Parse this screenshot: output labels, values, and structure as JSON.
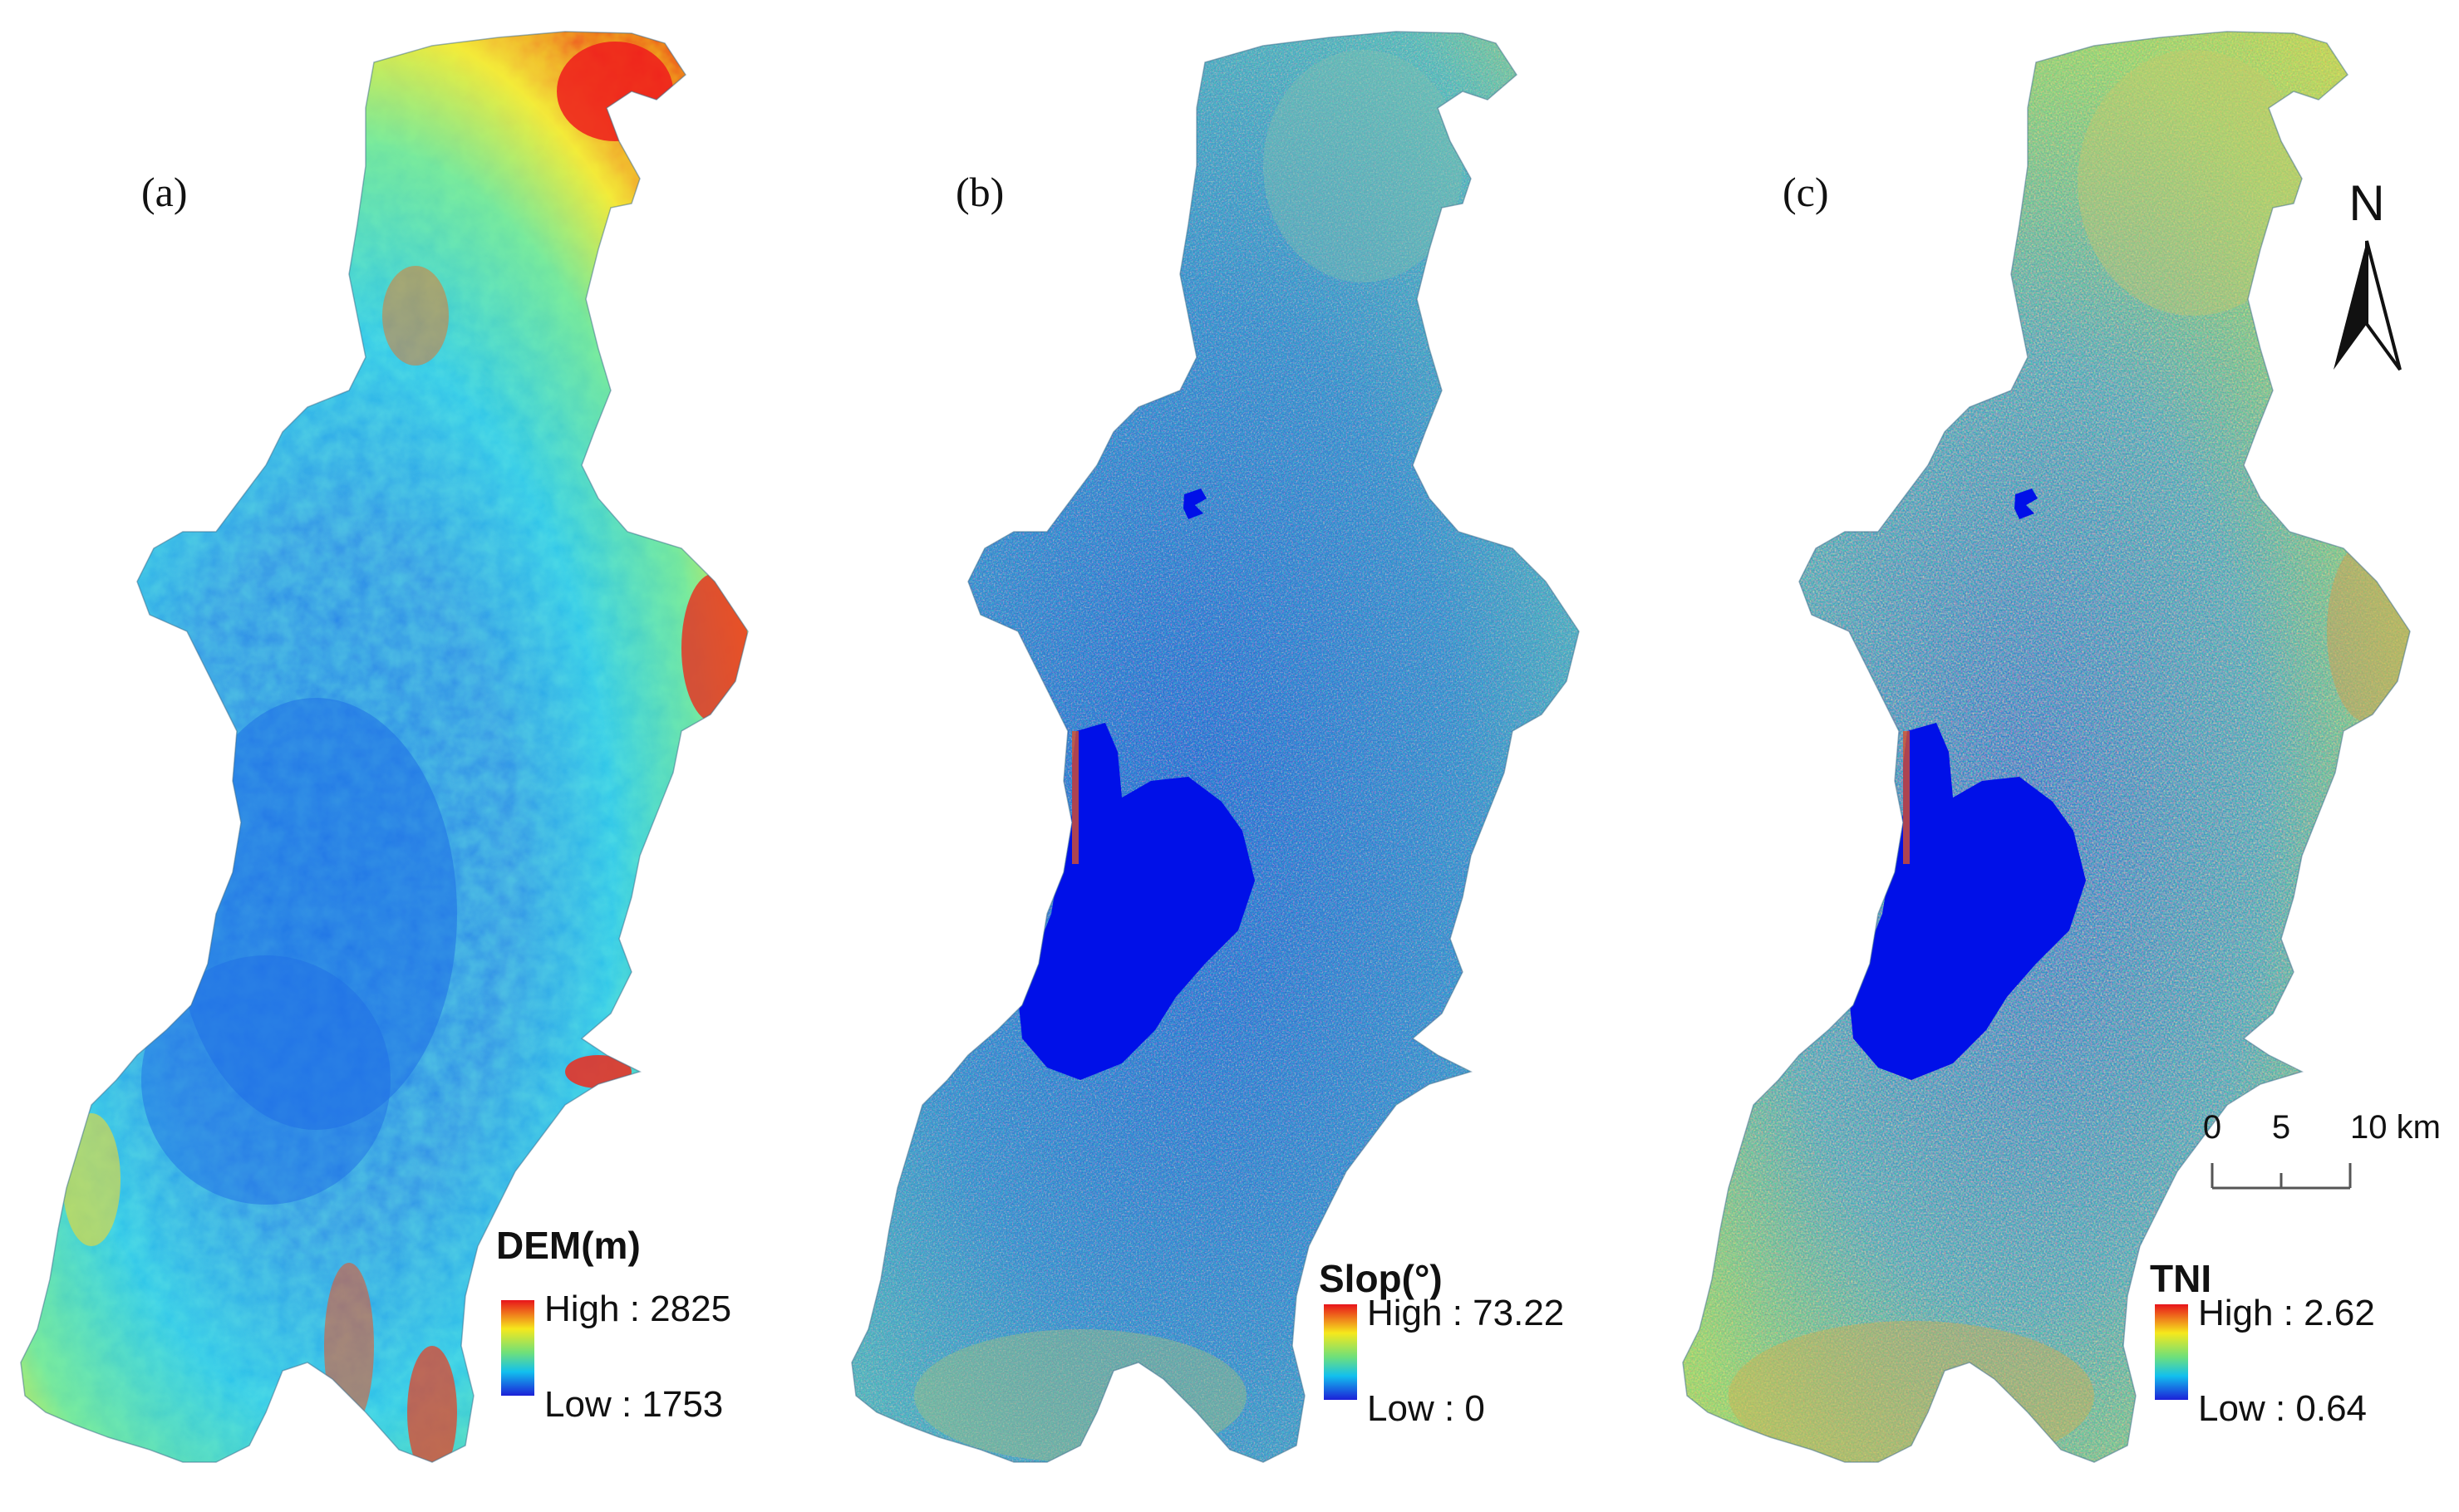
{
  "panels": [
    {
      "id": "a",
      "label": "(a)",
      "legend": {
        "title": "DEM(m)",
        "high": "High : 2825",
        "low": "Low : 1753"
      }
    },
    {
      "id": "b",
      "label": "(b)",
      "legend": {
        "title": "Slop(°)",
        "high": "High : 73.22",
        "low": "Low : 0"
      }
    },
    {
      "id": "c",
      "label": "(c)",
      "legend": {
        "title": "TNI",
        "high": "High : 2.62",
        "low": "Low : 0.64"
      }
    }
  ],
  "north_arrow": {
    "label": "N"
  },
  "scale_bar": {
    "labels": [
      "0",
      "5",
      "10 km"
    ]
  },
  "colors": {
    "lake": "#0010e8",
    "ramp_high": "#e8141b",
    "ramp_mid_high": "#f6e81c",
    "ramp_mid": "#6fe07a",
    "ramp_mid_low": "#12c0ee",
    "ramp_low": "#1c20d8"
  }
}
